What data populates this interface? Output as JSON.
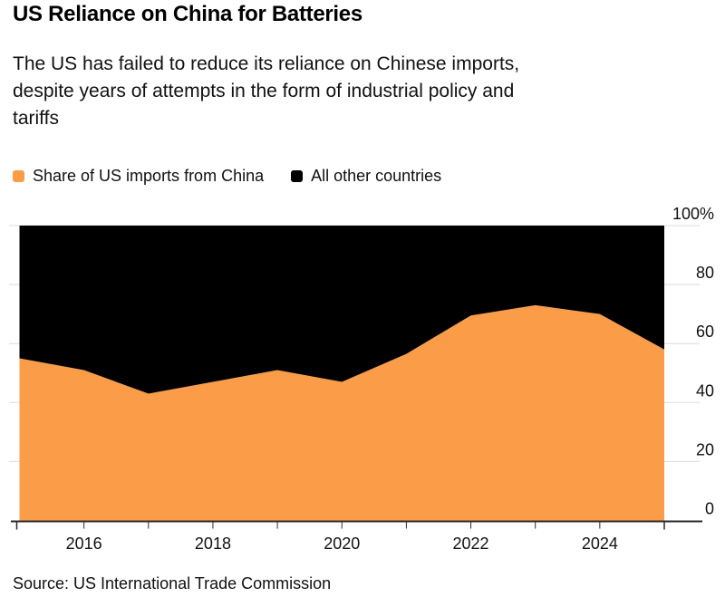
{
  "header": {
    "title": "US Reliance on China for Batteries",
    "subtitle_lines": [
      "The US has failed to reduce its reliance on Chinese imports,",
      "despite years of attempts in the form of industrial policy and",
      "tariffs"
    ]
  },
  "legend": [
    {
      "label": "Share of US imports from China",
      "color": "#FB9D48",
      "swatch": "orange-square"
    },
    {
      "label": "All other countries",
      "color": "#000000",
      "swatch": "black-square"
    }
  ],
  "source": "Source: US International Trade Commission",
  "colors": {
    "china_area": "#FB9D48",
    "others_area": "#000000",
    "gridline": "#DCDCDC",
    "axis": "#2A2A2A",
    "text": "#111111"
  },
  "chart_data": {
    "type": "area",
    "stacked": true,
    "title": "US Reliance on China for Batteries",
    "x": [
      2015,
      2016,
      2017,
      2018,
      2019,
      2020,
      2021,
      2022,
      2023,
      2024,
      2025
    ],
    "series": [
      {
        "name": "Share of US imports from China",
        "color": "#FB9D48",
        "values": [
          55,
          51,
          43,
          47,
          51,
          47,
          56.5,
          69.5,
          73,
          70,
          58
        ]
      },
      {
        "name": "All other countries",
        "color": "#000000",
        "values": [
          45,
          49,
          57,
          53,
          49,
          53,
          43.5,
          30.5,
          27,
          30,
          42
        ]
      }
    ],
    "unit": "%",
    "ylim": [
      0,
      100
    ],
    "yticks": [
      0,
      20,
      40,
      60,
      80,
      100
    ],
    "ytick_labels": [
      "0",
      "20",
      "40",
      "60",
      "80",
      "100%"
    ],
    "y_axis_side": "right",
    "xticks": [
      2016,
      2017,
      2018,
      2019,
      2020,
      2021,
      2022,
      2023,
      2024
    ],
    "xtick_labeled": [
      2016,
      2018,
      2020,
      2022,
      2024
    ],
    "xtick_labels": [
      "2016",
      "2018",
      "2020",
      "2022",
      "2024"
    ],
    "grid": "horizontal",
    "legend_position": "top-left"
  }
}
